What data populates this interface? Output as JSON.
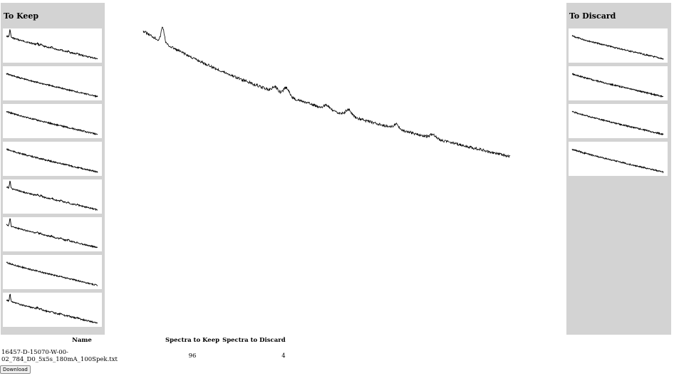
{
  "keep_panel": {
    "title": "To Keep",
    "thumbnail_count": 8
  },
  "discard_panel": {
    "title": "To Discard",
    "thumbnail_count": 4
  },
  "table": {
    "headers": [
      "Name",
      "Spectra to Keep",
      "Spectra to Discard"
    ],
    "rows": [
      {
        "name": "16457-D-15070-W-00-02_784_D0_5x5s_180mA_100Spek.txt",
        "keep": "96",
        "discard": "4"
      }
    ]
  },
  "download_label": "Download",
  "colors": {
    "panel_bg": "#d3d3d3",
    "line": "#000000"
  }
}
